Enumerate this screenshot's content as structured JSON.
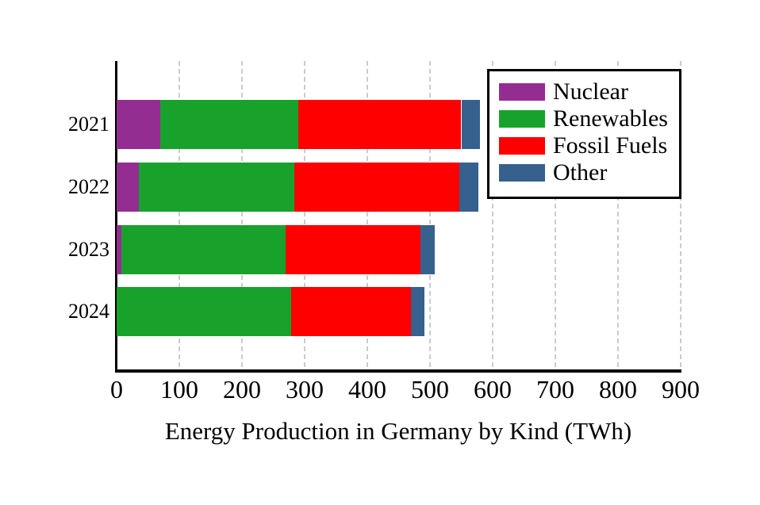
{
  "chart_data": {
    "type": "bar",
    "orientation": "horizontal",
    "stacked": true,
    "title": "Energy Production in Germany by Kind (TWh)",
    "categories": [
      "2021",
      "2022",
      "2023",
      "2024"
    ],
    "series": [
      {
        "name": "Nuclear",
        "color": "#942D91",
        "values": [
          70,
          35,
          8,
          0
        ]
      },
      {
        "name": "Renewables",
        "color": "#18A22B",
        "values": [
          220,
          248,
          262,
          278
        ]
      },
      {
        "name": "Fossil Fuels",
        "color": "#FF0000",
        "values": [
          260,
          264,
          215,
          192
        ]
      },
      {
        "name": "Other",
        "color": "#36618E",
        "values": [
          30,
          30,
          23,
          21
        ]
      }
    ],
    "totals": [
      580,
      577,
      508,
      491
    ],
    "x_ticks": [
      0,
      100,
      200,
      300,
      400,
      500,
      600,
      700,
      800,
      900
    ],
    "xlim": [
      0,
      900
    ],
    "xlabel": "Energy Production in Germany by Kind (TWh)",
    "ylabel": "",
    "grid": "vertical-dashed",
    "legend_position": "top-right",
    "colors": {
      "axis": "#000000",
      "gridline": "#cbcbcb",
      "background": "#ffffff",
      "text": "#000000"
    }
  }
}
